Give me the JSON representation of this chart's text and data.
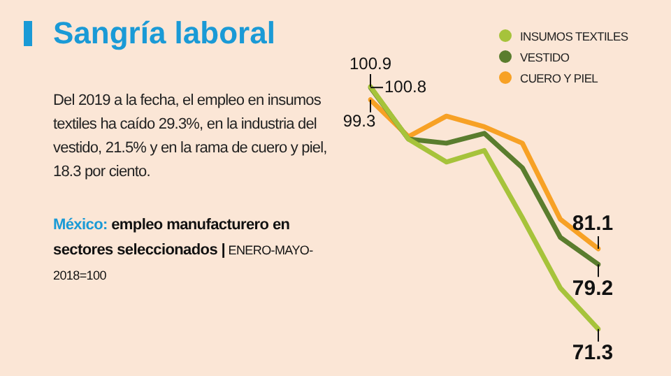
{
  "chart_data": {
    "type": "line",
    "title": "Sangría laboral",
    "subtitle": "Del 2019 a la fecha, el empleo en insumos textiles ha caído 29.3%, en la industria del vestido, 21.5% y en la rama de cuero y piel, 18.3 por ciento.",
    "annotations": [
      "México: empleo manufacturero en sectores seleccionados | ENERO-MAYO-2018=100"
    ],
    "categories": [
      null,
      null,
      null,
      null,
      null,
      null,
      null
    ],
    "series": [
      {
        "name": "INSUMOS TEXTILES",
        "color": "#a6c33b",
        "values": [
          100.9,
          94.5,
          91.7,
          93.1,
          84.9,
          76.3,
          71.3
        ],
        "value_labels": [
          "100.9",
          null,
          null,
          null,
          null,
          null,
          "71.3"
        ]
      },
      {
        "name": "VESTIDO",
        "color": "#5a7d2e",
        "values": [
          100.8,
          94.5,
          94.0,
          95.2,
          91.0,
          82.5,
          79.2
        ],
        "value_labels": [
          "100.8",
          null,
          null,
          null,
          null,
          null,
          "79.2"
        ]
      },
      {
        "name": "CUERO Y PIEL",
        "color": "#f7a125",
        "values": [
          99.3,
          94.8,
          97.3,
          96.0,
          94.0,
          84.7,
          81.1
        ],
        "value_labels": [
          "99.3",
          null,
          null,
          null,
          null,
          null,
          "81.1"
        ]
      }
    ],
    "legend": "top right",
    "marker": "none",
    "line_style": "solid"
  }
}
